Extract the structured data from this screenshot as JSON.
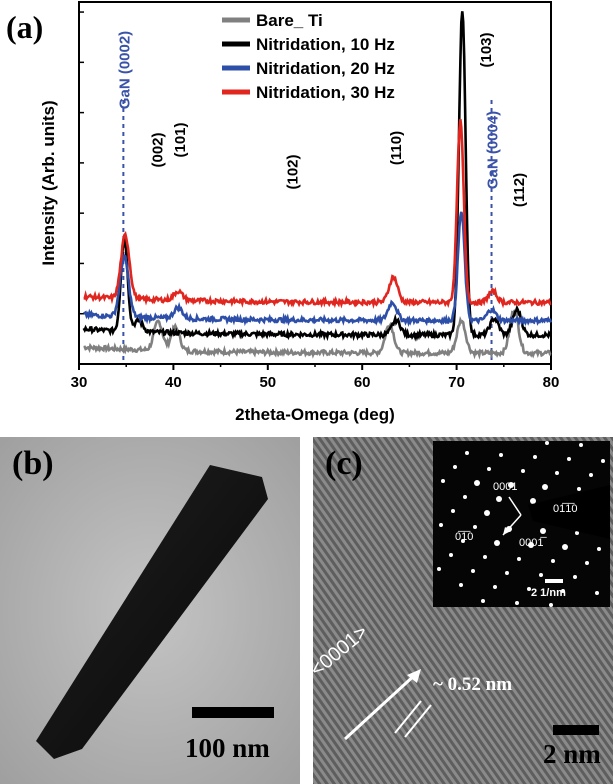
{
  "chart_data": {
    "type": "line",
    "title": "",
    "xlabel": "2theta-Omega (deg)",
    "ylabel": "Intensity (Arb. units)",
    "xlim": [
      30,
      80
    ],
    "xticks": [
      "30",
      "40",
      "50",
      "60",
      "70",
      "80"
    ],
    "grid": false,
    "legend_position": "top-center",
    "series": [
      {
        "name": "Bare_ Ti",
        "color": "#808080",
        "baseline": 0.6,
        "peaks": [
          [
            38.4,
            1.6
          ],
          [
            40.2,
            1.3
          ],
          [
            62.9,
            1.6
          ],
          [
            70.5,
            1.8
          ],
          [
            76.1,
            2.4
          ]
        ]
      },
      {
        "name": "Nitridation, 10 Hz",
        "color": "#000000",
        "baseline": 1.6,
        "peaks": [
          [
            34.8,
            5.2
          ],
          [
            36.3,
            0.6
          ],
          [
            63.6,
            0.8
          ],
          [
            70.6,
            18
          ],
          [
            74.0,
            0.9
          ],
          [
            76.4,
            1.4
          ]
        ]
      },
      {
        "name": "Nitridation, 20 Hz",
        "color": "#2e4fa8",
        "baseline": 2.4,
        "peaks": [
          [
            34.8,
            3.3
          ],
          [
            40.5,
            0.6
          ],
          [
            63.2,
            1.0
          ],
          [
            70.5,
            6.0
          ],
          [
            73.7,
            0.6
          ]
        ]
      },
      {
        "name": "Nitridation, 30 Hz",
        "color": "#e0261e",
        "baseline": 3.4,
        "peaks": [
          [
            34.9,
            3.5
          ],
          [
            40.5,
            0.5
          ],
          [
            63.3,
            1.4
          ],
          [
            70.4,
            10
          ],
          [
            73.8,
            0.6
          ]
        ]
      }
    ],
    "annotations": [
      {
        "text": "GaN (0002)",
        "x": 34.7,
        "color": "#3a52a8",
        "vertical": true,
        "dashed_line": true
      },
      {
        "text": "GaN (0004)",
        "x": 73.7,
        "color": "#3a52a8",
        "vertical": true,
        "dashed_line": true
      },
      {
        "text": "(002)",
        "x": 38.2,
        "color": "#000000",
        "vertical": true
      },
      {
        "text": "(101)",
        "x": 40.6,
        "color": "#000000",
        "vertical": true
      },
      {
        "text": "(102)",
        "x": 52.5,
        "color": "#000000",
        "vertical": true
      },
      {
        "text": "(110)",
        "x": 63.5,
        "color": "#000000",
        "vertical": true
      },
      {
        "text": "(103)",
        "x": 73.0,
        "color": "#000000",
        "vertical": true
      },
      {
        "text": "(112)",
        "x": 76.5,
        "color": "#000000",
        "vertical": true
      }
    ]
  },
  "panels": {
    "a_label": "(a)",
    "b_label": "(b)",
    "c_label": "(c)"
  },
  "panel_b": {
    "scale_text": "100 nm"
  },
  "panel_c": {
    "scale_text": "2 nm",
    "direction_label": "<0001>",
    "spacing_label": "~ 0.52 nm",
    "inset": {
      "label_0001": "0001",
      "label_0110": "01̅1̅0",
      "label_0110b": "0̅1̅0",
      "label_0001b": "0001̅",
      "scale_text": "2 1/nm"
    }
  }
}
